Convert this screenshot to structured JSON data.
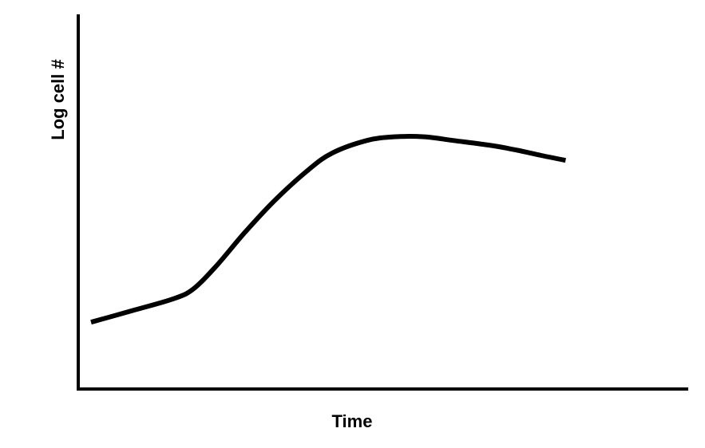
{
  "chart_data": {
    "type": "line",
    "title": "",
    "xlabel": "Time",
    "ylabel": "Log cell #",
    "xlim": [
      0,
      100
    ],
    "ylim": [
      0,
      100
    ],
    "grid": false,
    "ticks": false,
    "series": [
      {
        "color": "#000000",
        "x": [
          2.1,
          9.3,
          15.7,
          18.9,
          22.7,
          27.4,
          32.2,
          37.8,
          41.8,
          47.4,
          51.9,
          56.9,
          61.7,
          67.8,
          72.2,
          76.1,
          80.1
        ],
        "y": [
          17.9,
          21.2,
          24.2,
          26.8,
          33.0,
          42.0,
          50.4,
          58.7,
          63.3,
          66.6,
          67.6,
          67.6,
          66.6,
          65.3,
          64.0,
          62.6,
          61.3
        ]
      }
    ]
  },
  "colors": {
    "axis": "#000000",
    "line": "#000000",
    "background": "#ffffff"
  }
}
